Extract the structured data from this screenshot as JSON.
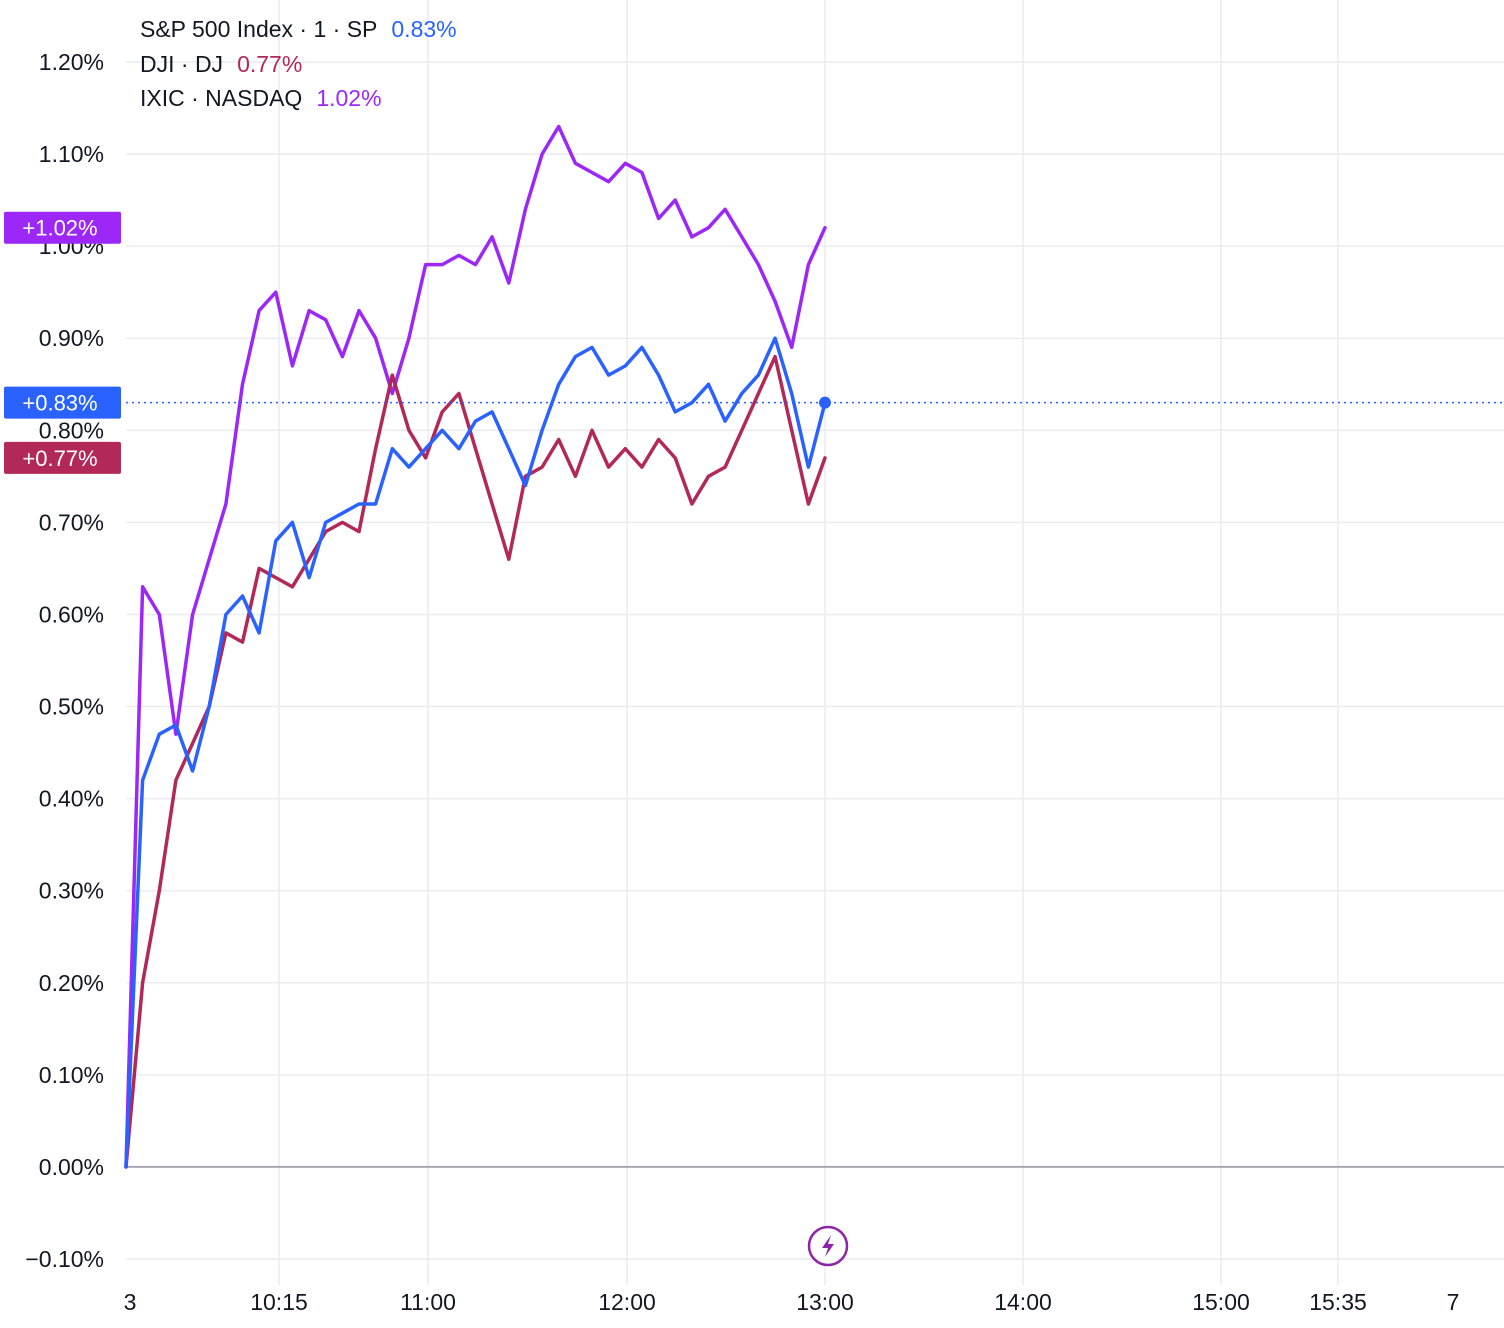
{
  "chart_data": {
    "type": "line",
    "x_tick_labels": [
      "3",
      "10:15",
      "11:00",
      "12:00",
      "13:00",
      "14:00",
      "15:00",
      "15:35",
      "7"
    ],
    "y_tick_labels": [
      "1.20%",
      "1.10%",
      "1.00%",
      "0.90%",
      "0.80%",
      "0.70%",
      "0.60%",
      "0.50%",
      "0.40%",
      "0.30%",
      "0.20%",
      "0.10%",
      "0.00%",
      "−0.10%"
    ],
    "ylim": [
      -0.1,
      1.2
    ],
    "grid": true,
    "legend_position": "top-left",
    "x_time": [
      "09:30",
      "09:35",
      "09:40",
      "09:45",
      "09:50",
      "09:55",
      "10:00",
      "10:05",
      "10:10",
      "10:15",
      "10:20",
      "10:25",
      "10:30",
      "10:35",
      "10:40",
      "10:45",
      "10:50",
      "10:55",
      "11:00",
      "11:05",
      "11:10",
      "11:15",
      "11:20",
      "11:25",
      "11:30",
      "11:35",
      "11:40",
      "11:45",
      "11:50",
      "11:55",
      "12:00",
      "12:05",
      "12:10",
      "12:15",
      "12:20",
      "12:25",
      "12:30",
      "12:35",
      "12:40",
      "12:45",
      "12:50",
      "12:55",
      "13:00"
    ],
    "series": [
      {
        "name": "S&P 500 Index · 1 · SP",
        "value_label": "0.83%",
        "badge": "+0.83%",
        "color": "#2962ff",
        "values": [
          0.0,
          0.42,
          0.47,
          0.48,
          0.43,
          0.5,
          0.6,
          0.62,
          0.58,
          0.68,
          0.7,
          0.64,
          0.7,
          0.71,
          0.72,
          0.72,
          0.78,
          0.76,
          0.78,
          0.8,
          0.78,
          0.81,
          0.82,
          0.78,
          0.74,
          0.8,
          0.85,
          0.88,
          0.89,
          0.86,
          0.87,
          0.89,
          0.86,
          0.82,
          0.83,
          0.85,
          0.81,
          0.84,
          0.86,
          0.9,
          0.84,
          0.76,
          0.83
        ]
      },
      {
        "name": "DJI · DJ",
        "value_label": "0.77%",
        "badge": "+0.77%",
        "color": "#b22859",
        "values": [
          0.0,
          0.2,
          0.3,
          0.42,
          0.46,
          0.5,
          0.58,
          0.57,
          0.65,
          0.64,
          0.63,
          0.66,
          0.69,
          0.7,
          0.69,
          0.78,
          0.86,
          0.8,
          0.77,
          0.82,
          0.84,
          0.78,
          0.72,
          0.66,
          0.75,
          0.76,
          0.79,
          0.75,
          0.8,
          0.76,
          0.78,
          0.76,
          0.79,
          0.77,
          0.72,
          0.75,
          0.76,
          0.8,
          0.84,
          0.88,
          0.8,
          0.72,
          0.77
        ]
      },
      {
        "name": "IXIC · NASDAQ",
        "value_label": "1.02%",
        "badge": "+1.02%",
        "color": "#9c27f7",
        "values": [
          0.0,
          0.63,
          0.6,
          0.47,
          0.6,
          0.66,
          0.72,
          0.85,
          0.93,
          0.95,
          0.87,
          0.93,
          0.92,
          0.88,
          0.93,
          0.9,
          0.84,
          0.9,
          0.98,
          0.98,
          0.99,
          0.98,
          1.01,
          0.96,
          1.04,
          1.1,
          1.13,
          1.09,
          1.08,
          1.07,
          1.09,
          1.08,
          1.03,
          1.05,
          1.01,
          1.02,
          1.04,
          1.01,
          0.98,
          0.94,
          0.89,
          0.98,
          1.02
        ]
      }
    ]
  }
}
